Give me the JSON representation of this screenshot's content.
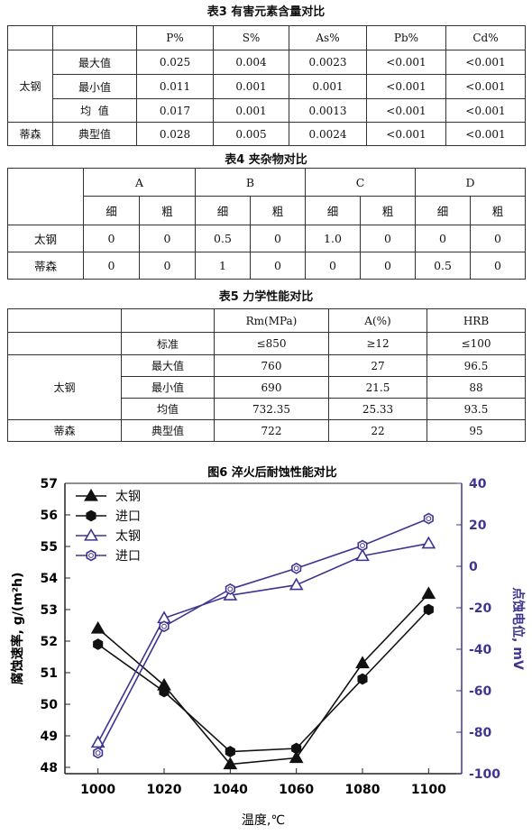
{
  "table3": {
    "caption": "表3 有害元素含量对比",
    "headers": [
      "P%",
      "S%",
      "As%",
      "Pb%",
      "Cd%"
    ],
    "group_taigang": "太钢",
    "group_disen": "蒂森",
    "rows": [
      {
        "label": "最大值",
        "values": [
          "0.025",
          "0.004",
          "0.0023",
          "<0.001",
          "<0.001"
        ]
      },
      {
        "label": "最小值",
        "values": [
          "0.011",
          "0.001",
          "0.001",
          "<0.001",
          "<0.001"
        ]
      },
      {
        "label": "均  值",
        "values": [
          "0.017",
          "0.001",
          "0.0013",
          "<0.001",
          "<0.001"
        ]
      },
      {
        "label": "典型值",
        "values": [
          "0.028",
          "0.005",
          "0.0024",
          "<0.001",
          "<0.001"
        ]
      }
    ]
  },
  "table4": {
    "caption": "表4 夹杂物对比",
    "classes": [
      "A",
      "B",
      "C",
      "D"
    ],
    "subheaders": [
      "细",
      "粗",
      "细",
      "粗",
      "细",
      "粗",
      "细",
      "粗"
    ],
    "rows": [
      {
        "label": "太钢",
        "values": [
          "0",
          "0",
          "0.5",
          "0",
          "1.0",
          "0",
          "0",
          "0"
        ]
      },
      {
        "label": "蒂森",
        "values": [
          "0",
          "0",
          "1",
          "0",
          "0",
          "0",
          "0.5",
          "0"
        ]
      }
    ]
  },
  "table5": {
    "caption": "表5 力学性能对比",
    "headers": [
      "Rm(MPa)",
      "A(%)",
      "HRB"
    ],
    "std_row": {
      "label": "标准",
      "values": [
        "≤850",
        "≥12",
        "≤100"
      ]
    },
    "group_taigang": "太钢",
    "group_disen": "蒂森",
    "rows": [
      {
        "label": "最大值",
        "values": [
          "760",
          "27",
          "96.5"
        ]
      },
      {
        "label": "最小值",
        "values": [
          "690",
          "21.5",
          "88"
        ]
      },
      {
        "label": "均值",
        "values": [
          "732.35",
          "25.33",
          "93.5"
        ]
      },
      {
        "label": "典型值",
        "values": [
          "722",
          "22",
          "95"
        ]
      }
    ]
  },
  "chart_data": {
    "type": "line",
    "title": "图6 淬火后耐蚀性能对比",
    "xlabel": "温度,℃",
    "ylabel": "腐蚀速率, g/(m²h)",
    "y2label": "点蚀电位, mV",
    "x": [
      1000,
      1020,
      1040,
      1060,
      1080,
      1100
    ],
    "xlim": [
      990,
      1110
    ],
    "ylim": [
      47.8,
      57
    ],
    "yticks": [
      48,
      49,
      50,
      51,
      52,
      53,
      54,
      55,
      56,
      57
    ],
    "y2lim": [
      -100,
      40
    ],
    "y2ticks": [
      -100,
      -80,
      -60,
      -40,
      -20,
      0,
      20,
      40
    ],
    "legend_position": "top-left",
    "series": [
      {
        "name": "太钢",
        "axis": "left",
        "marker": "triangle",
        "color": "#111111",
        "filled": true,
        "values": [
          52.4,
          50.6,
          48.1,
          48.3,
          51.3,
          53.5
        ]
      },
      {
        "name": "进口",
        "axis": "left",
        "marker": "hexagon",
        "color": "#111111",
        "filled": true,
        "values": [
          51.9,
          50.4,
          48.5,
          48.6,
          50.8,
          53.0
        ]
      },
      {
        "name": "太钢",
        "axis": "right",
        "marker": "triangle",
        "color": "#3d3591",
        "filled": false,
        "values": [
          -85,
          -25,
          -14,
          -9,
          5,
          11
        ]
      },
      {
        "name": "进口",
        "axis": "right",
        "marker": "hexagon",
        "color": "#3d3591",
        "filled": false,
        "values": [
          -90,
          -29,
          -11,
          -1,
          10,
          23
        ]
      }
    ]
  }
}
